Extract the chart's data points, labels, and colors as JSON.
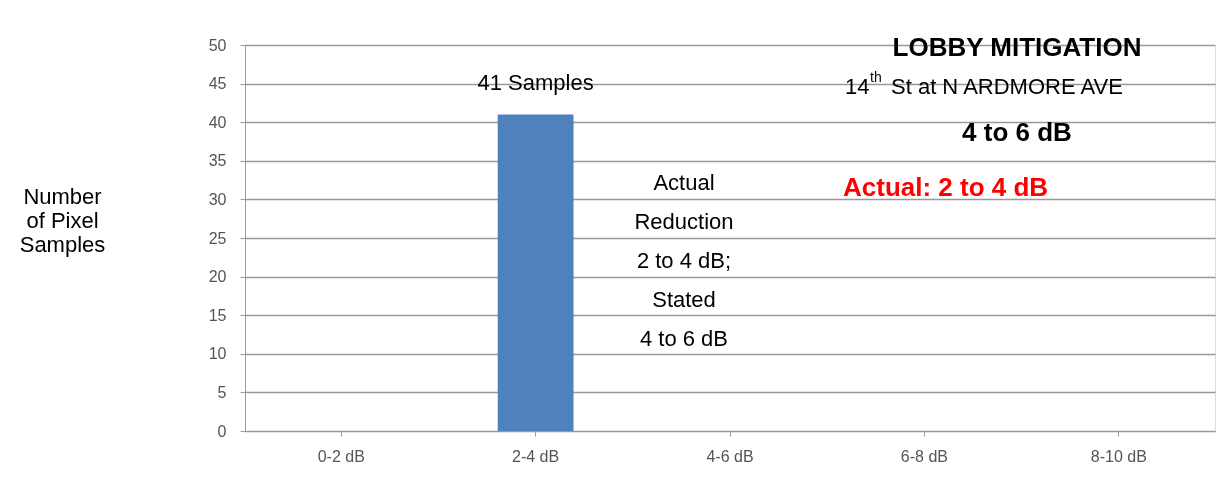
{
  "chart_data": {
    "type": "bar",
    "title": "LOBBY MITIGATION",
    "subtitle": "14$^{th}$ St at N ARDMORE AVE",
    "ylabel": "Number of Pixel Samples",
    "categories": [
      "0-2 dB",
      "2-4 dB",
      "4-6 dB",
      "6-8 dB",
      "8-10 dB"
    ],
    "values": [
      0,
      41,
      0,
      0,
      0
    ],
    "color": "#4f81bd",
    "value_labels": [
      null,
      "41 Samples",
      null,
      null,
      null
    ],
    "ylim": [
      0,
      50
    ],
    "yticks": [
      0,
      5,
      10,
      15,
      20,
      25,
      30,
      35,
      40,
      45,
      50
    ],
    "grid": "y",
    "annotations": [
      "4 to 6 dB",
      "Actual:      2 to 4 dB",
      "Actual\nReduction\n2 to 4 dB;\nStated\n4 to 6 dB"
    ]
  }
}
